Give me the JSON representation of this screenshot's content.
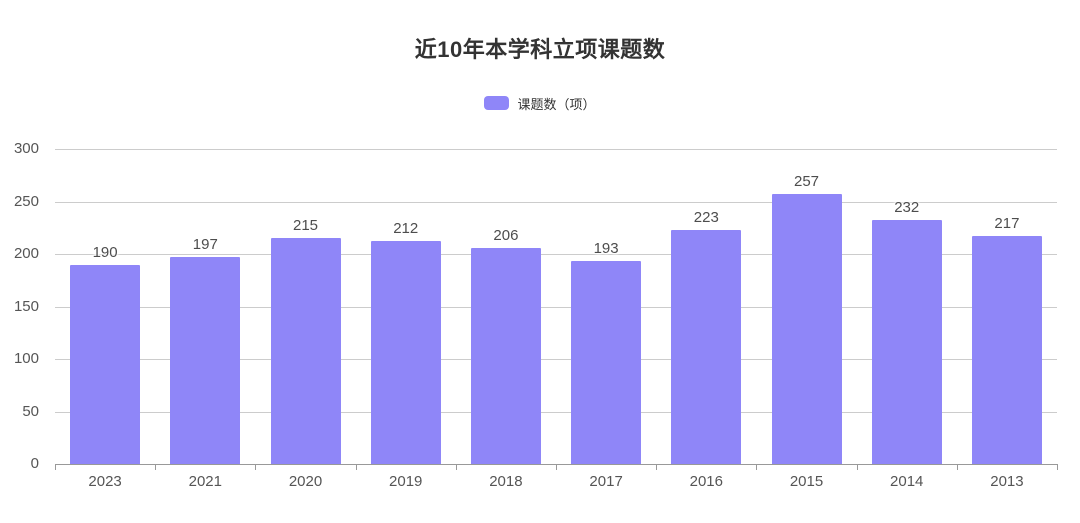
{
  "title": "近10年本学科立项课题数",
  "legend": {
    "label": "课题数（项）",
    "swatch_color": "#8f86f8"
  },
  "colors": {
    "background": "#ffffff",
    "bar": "#8f86f8",
    "gridline": "#cccccc",
    "axis_line": "#999999",
    "tick_label": "#555555",
    "value_label": "#4d4d4d",
    "title": "#333333"
  },
  "chart_data": {
    "type": "bar",
    "title": "近10年本学科立项课题数",
    "categories": [
      "2023",
      "2021",
      "2020",
      "2019",
      "2018",
      "2017",
      "2016",
      "2015",
      "2014",
      "2013"
    ],
    "series": [
      {
        "name": "课题数（项）",
        "values": [
          190,
          197,
          215,
          212,
          206,
          193,
          223,
          257,
          232,
          217
        ],
        "color": "#8f86f8"
      }
    ],
    "xlabel": "",
    "ylabel": "",
    "ylim": [
      0,
      300
    ],
    "y_ticks": [
      0,
      50,
      100,
      150,
      200,
      250,
      300
    ],
    "grid": true,
    "legend_position": "top",
    "value_labels": true
  }
}
